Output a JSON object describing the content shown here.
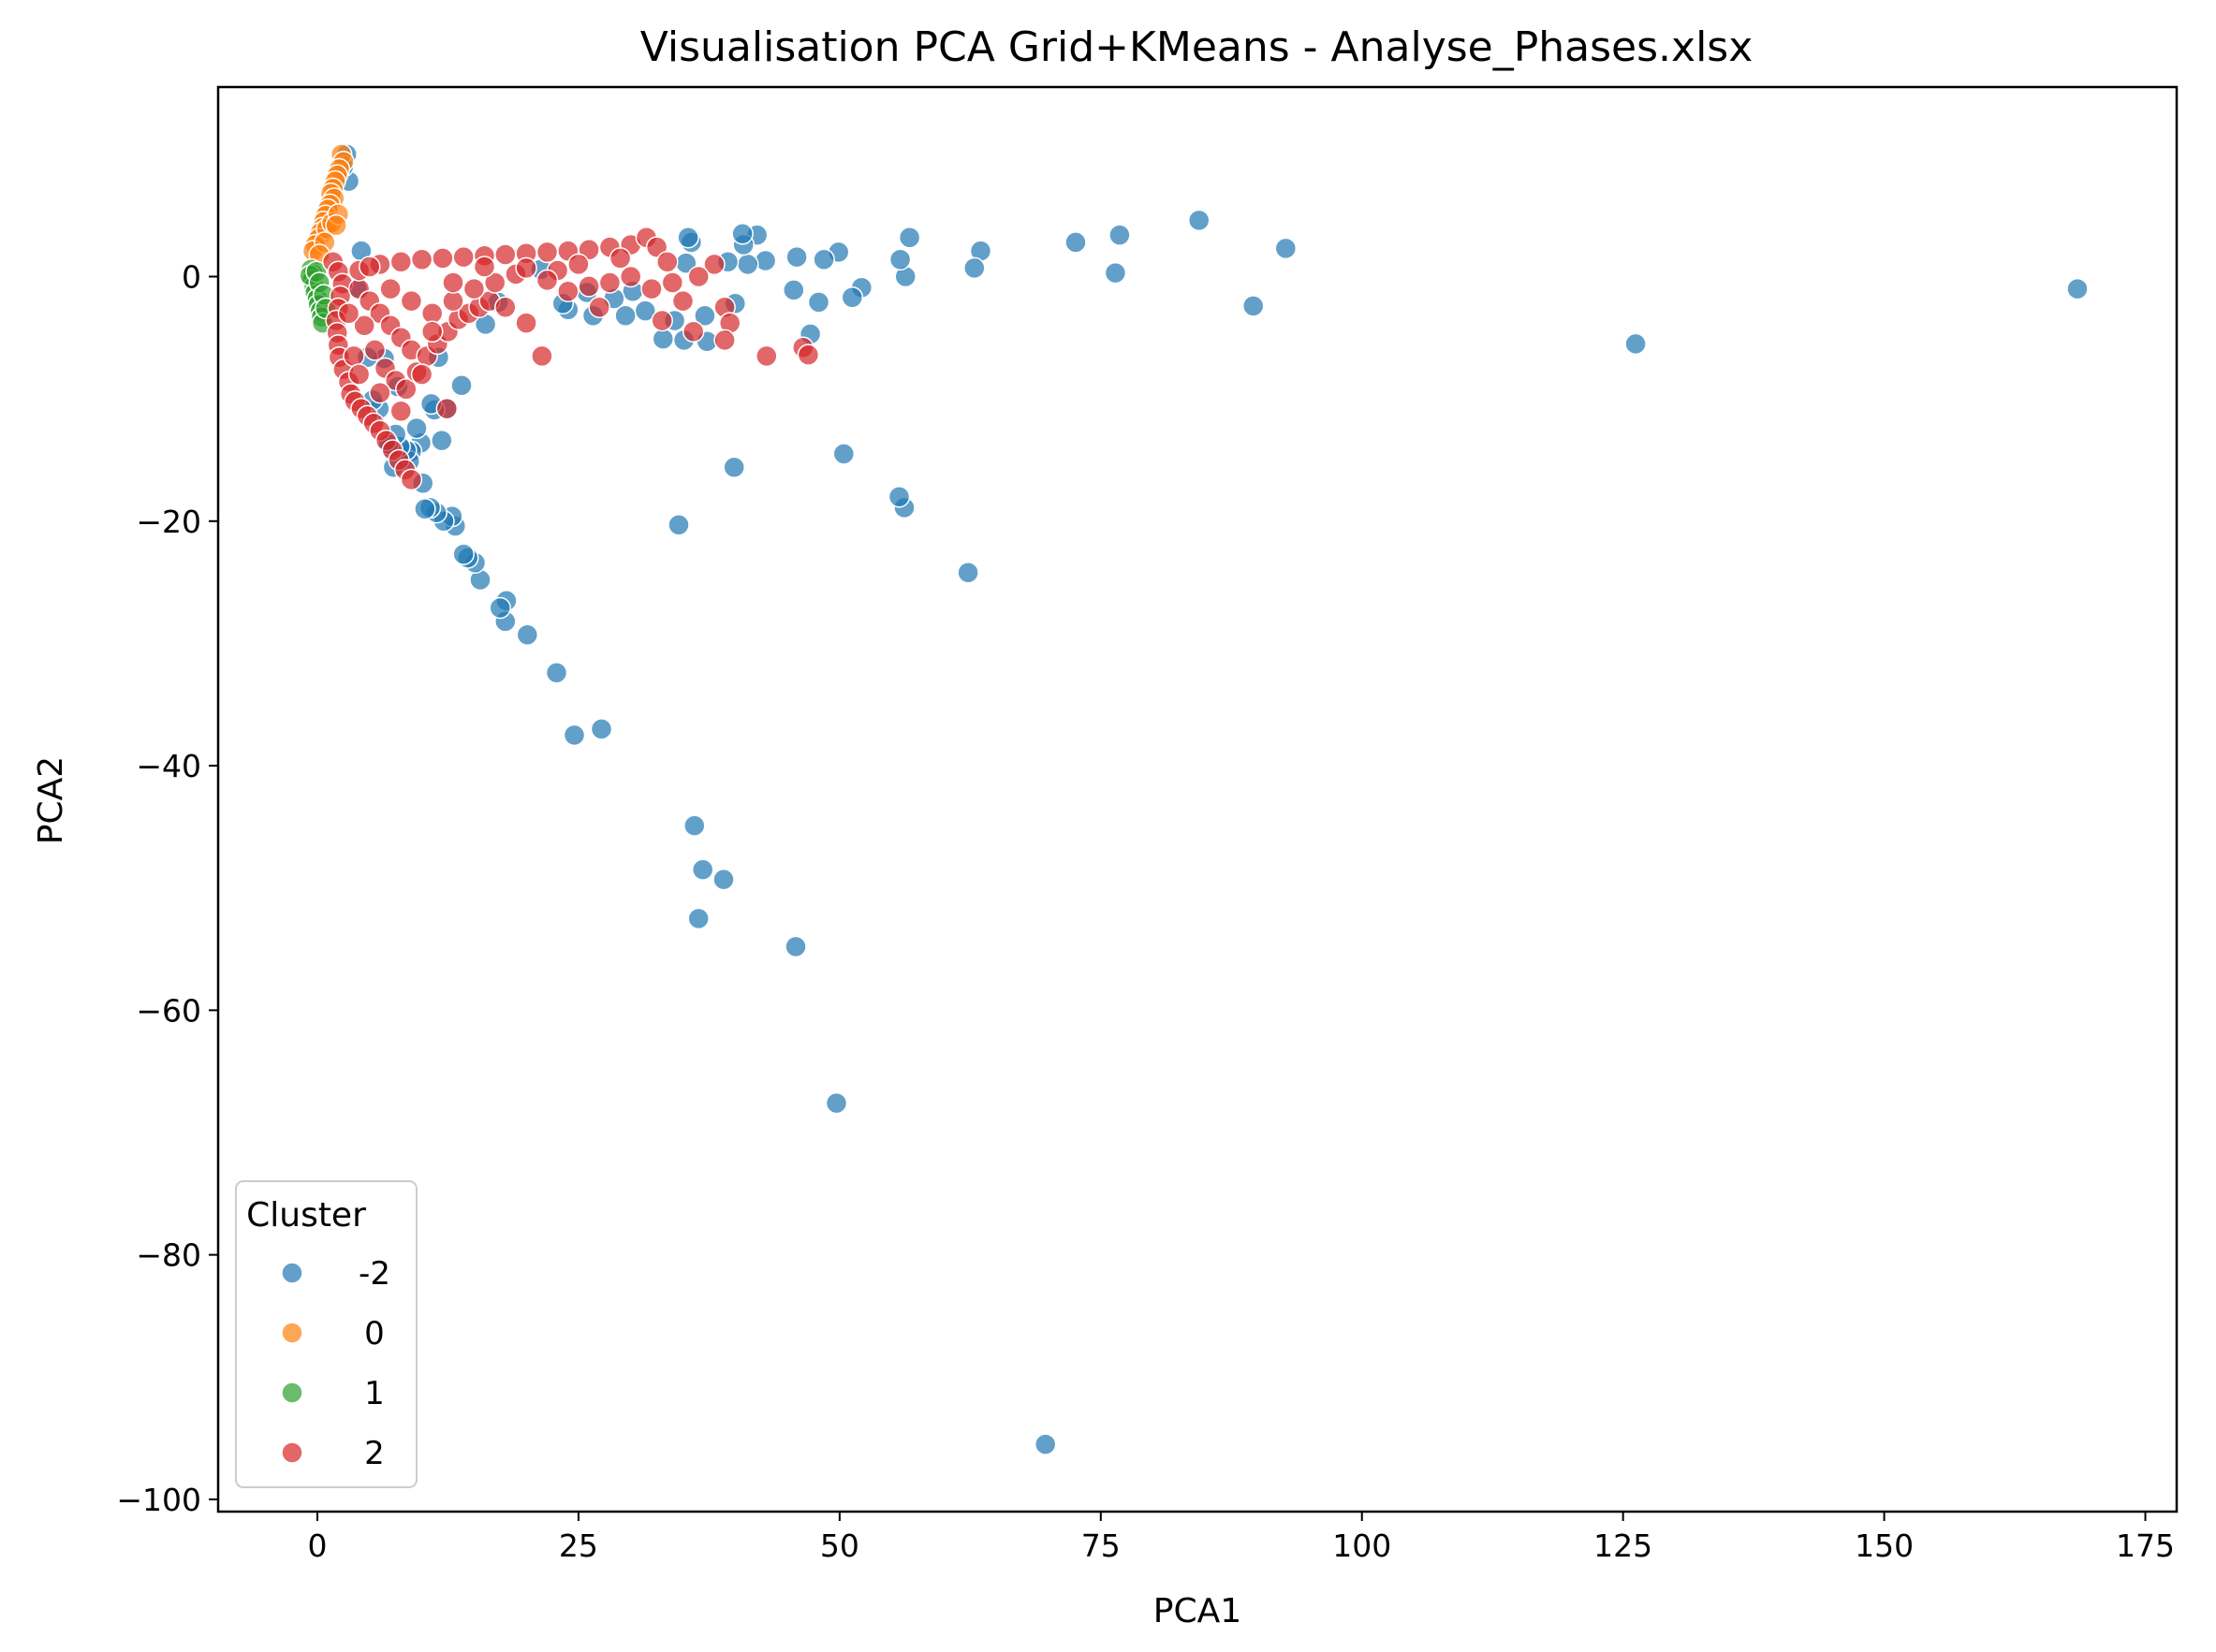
{
  "chart_data": {
    "type": "scatter",
    "title": "Visualisation PCA Grid+KMeans - Analyse_Phases.xlsx",
    "xlabel": "PCA1",
    "ylabel": "PCA2",
    "xlim": [
      -9.5,
      178
    ],
    "ylim": [
      -101,
      15.5
    ],
    "xticks": [
      0,
      25,
      50,
      75,
      100,
      125,
      150,
      175
    ],
    "xtick_labels": [
      "0",
      "25",
      "50",
      "75",
      "100",
      "125",
      "150",
      "175"
    ],
    "yticks": [
      0,
      -20,
      -40,
      -60,
      -80,
      -100
    ],
    "ytick_labels": [
      "0",
      "−20",
      "−40",
      "−60",
      "−80",
      "−100"
    ],
    "grid": false,
    "legend": {
      "title": "Cluster",
      "placement": "lower-left"
    },
    "series": [
      {
        "name": "-2",
        "color": "#1f77b4",
        "points": [
          [
            168.5,
            -1.0
          ],
          [
            126.2,
            -5.5
          ],
          [
            92.7,
            2.3
          ],
          [
            89.6,
            -2.4
          ],
          [
            84.4,
            4.6
          ],
          [
            76.8,
            3.4
          ],
          [
            76.4,
            0.3
          ],
          [
            72.6,
            2.8
          ],
          [
            69.7,
            -95.5
          ],
          [
            63.5,
            2.1
          ],
          [
            62.9,
            0.7
          ],
          [
            62.3,
            -24.2
          ],
          [
            56.7,
            3.2
          ],
          [
            56.3,
            0.0
          ],
          [
            56.2,
            -18.9
          ],
          [
            55.8,
            1.4
          ],
          [
            55.7,
            -18.0
          ],
          [
            52.1,
            -0.9
          ],
          [
            51.2,
            -1.7
          ],
          [
            50.4,
            -14.5
          ],
          [
            49.9,
            2.0
          ],
          [
            49.7,
            -67.6
          ],
          [
            48.5,
            1.4
          ],
          [
            48.0,
            -2.1
          ],
          [
            47.2,
            -4.7
          ],
          [
            45.9,
            1.6
          ],
          [
            45.8,
            -54.8
          ],
          [
            45.6,
            -1.1
          ],
          [
            42.9,
            1.3
          ],
          [
            42.1,
            3.4
          ],
          [
            41.2,
            1.0
          ],
          [
            40.8,
            2.6
          ],
          [
            40.7,
            3.5
          ],
          [
            40.0,
            -2.2
          ],
          [
            39.9,
            -15.6
          ],
          [
            39.3,
            1.2
          ],
          [
            38.9,
            -49.3
          ],
          [
            37.3,
            -5.3
          ],
          [
            37.1,
            -3.2
          ],
          [
            36.9,
            -48.5
          ],
          [
            36.5,
            -52.5
          ],
          [
            36.1,
            -44.9
          ],
          [
            35.8,
            2.8
          ],
          [
            35.5,
            3.2
          ],
          [
            35.3,
            1.1
          ],
          [
            35.1,
            -5.2
          ],
          [
            34.6,
            -20.3
          ],
          [
            34.2,
            -3.6
          ],
          [
            33.1,
            -5.1
          ],
          [
            31.4,
            -2.8
          ],
          [
            30.2,
            -1.2
          ],
          [
            29.5,
            -3.2
          ],
          [
            28.4,
            -1.8
          ],
          [
            27.2,
            -37.0
          ],
          [
            26.4,
            -3.2
          ],
          [
            25.8,
            -1.3
          ],
          [
            24.6,
            -37.5
          ],
          [
            24.0,
            -2.7
          ],
          [
            23.5,
            -2.2
          ],
          [
            22.9,
            -32.4
          ],
          [
            21.4,
            0.6
          ],
          [
            20.1,
            -29.3
          ],
          [
            18.1,
            -26.5
          ],
          [
            18.0,
            -28.2
          ],
          [
            17.5,
            -27.1
          ],
          [
            17.3,
            -2.1
          ],
          [
            16.1,
            -3.9
          ],
          [
            15.6,
            -24.8
          ],
          [
            15.1,
            -23.4
          ],
          [
            14.4,
            -23.0
          ],
          [
            14.0,
            -22.7
          ],
          [
            13.8,
            -8.9
          ],
          [
            13.2,
            -20.4
          ],
          [
            12.9,
            -19.6
          ],
          [
            12.5,
            -10.8
          ],
          [
            12.1,
            -20.0
          ],
          [
            11.9,
            -13.4
          ],
          [
            11.6,
            -6.6
          ],
          [
            11.4,
            -19.3
          ],
          [
            11.2,
            -10.9
          ],
          [
            10.9,
            -10.4
          ],
          [
            10.8,
            -18.9
          ],
          [
            10.3,
            -19.0
          ],
          [
            10.1,
            -16.9
          ],
          [
            9.9,
            -13.6
          ],
          [
            9.5,
            -12.4
          ],
          [
            9.0,
            -14.3
          ],
          [
            8.8,
            -15.1
          ],
          [
            8.5,
            -14.2
          ],
          [
            7.9,
            -13.9
          ],
          [
            7.7,
            -9.0
          ],
          [
            7.5,
            -12.9
          ],
          [
            7.3,
            -15.6
          ],
          [
            7.0,
            -14.0
          ],
          [
            6.8,
            -13.7
          ],
          [
            6.4,
            -6.7
          ],
          [
            5.9,
            -10.8
          ],
          [
            5.3,
            -10.1
          ],
          [
            4.8,
            -6.6
          ],
          [
            4.2,
            2.1
          ],
          [
            3.8,
            -1.0
          ],
          [
            3.0,
            7.8
          ],
          [
            2.8,
            10.0
          ],
          [
            2.5,
            9.0
          ]
        ]
      },
      {
        "name": "0",
        "color": "#ff7f0e",
        "points": [
          [
            2.3,
            10.0
          ],
          [
            2.5,
            9.4
          ],
          [
            2.1,
            8.8
          ],
          [
            1.9,
            8.3
          ],
          [
            1.7,
            7.8
          ],
          [
            1.5,
            7.2
          ],
          [
            1.3,
            6.8
          ],
          [
            1.6,
            6.4
          ],
          [
            1.2,
            5.9
          ],
          [
            1.0,
            5.5
          ],
          [
            0.8,
            5.0
          ],
          [
            0.6,
            4.5
          ],
          [
            0.5,
            4.0
          ],
          [
            0.3,
            3.6
          ],
          [
            0.1,
            3.1
          ],
          [
            -0.2,
            2.6
          ],
          [
            -0.4,
            2.1
          ],
          [
            0.9,
            3.9
          ],
          [
            1.4,
            4.4
          ],
          [
            2.0,
            5.1
          ],
          [
            1.8,
            4.2
          ],
          [
            0.7,
            2.8
          ],
          [
            0.2,
            1.8
          ]
        ]
      },
      {
        "name": "1",
        "color": "#2ca02c",
        "points": [
          [
            -0.6,
            0.6
          ],
          [
            -0.4,
            0.2
          ],
          [
            -0.5,
            -0.3
          ],
          [
            -0.3,
            -0.8
          ],
          [
            -0.2,
            -1.3
          ],
          [
            0.0,
            -1.8
          ],
          [
            0.1,
            -2.3
          ],
          [
            0.3,
            -2.8
          ],
          [
            0.4,
            -3.3
          ],
          [
            0.5,
            -3.8
          ],
          [
            -0.7,
            0.1
          ],
          [
            -0.1,
            0.4
          ],
          [
            0.2,
            -0.5
          ],
          [
            0.6,
            -1.5
          ],
          [
            0.8,
            -2.6
          ]
        ]
      },
      {
        "name": "2",
        "color": "#d62728",
        "points": [
          [
            1.5,
            1.2
          ],
          [
            2.0,
            0.4
          ],
          [
            2.4,
            -0.6
          ],
          [
            2.2,
            -1.6
          ],
          [
            2.0,
            -2.6
          ],
          [
            1.8,
            -3.6
          ],
          [
            1.9,
            -4.6
          ],
          [
            2.0,
            -5.6
          ],
          [
            2.1,
            -6.6
          ],
          [
            2.5,
            -7.6
          ],
          [
            3.0,
            -8.6
          ],
          [
            3.2,
            -9.6
          ],
          [
            3.6,
            -10.2
          ],
          [
            4.2,
            -10.8
          ],
          [
            4.8,
            -11.4
          ],
          [
            5.4,
            -12.0
          ],
          [
            6.0,
            -12.6
          ],
          [
            6.6,
            -13.4
          ],
          [
            7.2,
            -14.2
          ],
          [
            7.8,
            -15.0
          ],
          [
            8.4,
            -15.8
          ],
          [
            9.0,
            -16.6
          ],
          [
            12.4,
            -10.8
          ],
          [
            4.0,
            -1.0
          ],
          [
            5.0,
            -2.0
          ],
          [
            6.0,
            -3.0
          ],
          [
            7.0,
            -4.0
          ],
          [
            8.0,
            -5.0
          ],
          [
            9.0,
            -6.0
          ],
          [
            4.5,
            -4.0
          ],
          [
            5.5,
            -6.0
          ],
          [
            6.5,
            -7.5
          ],
          [
            7.5,
            -8.5
          ],
          [
            8.5,
            -9.2
          ],
          [
            9.5,
            -7.8
          ],
          [
            10.5,
            -6.5
          ],
          [
            11.5,
            -5.5
          ],
          [
            12.5,
            -4.5
          ],
          [
            13.5,
            -3.5
          ],
          [
            14.5,
            -3.0
          ],
          [
            15.5,
            -2.5
          ],
          [
            16.5,
            -2.0
          ],
          [
            4.0,
            0.5
          ],
          [
            6.0,
            1.0
          ],
          [
            8.0,
            1.2
          ],
          [
            10.0,
            1.4
          ],
          [
            12.0,
            1.5
          ],
          [
            14.0,
            1.6
          ],
          [
            16.0,
            1.7
          ],
          [
            18.0,
            1.8
          ],
          [
            20.0,
            1.9
          ],
          [
            22.0,
            2.0
          ],
          [
            24.0,
            2.1
          ],
          [
            26.0,
            2.2
          ],
          [
            28.0,
            2.4
          ],
          [
            30.0,
            2.6
          ],
          [
            31.5,
            3.2
          ],
          [
            32.5,
            2.4
          ],
          [
            33.5,
            1.2
          ],
          [
            34.0,
            -0.5
          ],
          [
            35.0,
            -2.0
          ],
          [
            36.0,
            -4.5
          ],
          [
            38.0,
            1.0
          ],
          [
            39.0,
            -2.5
          ],
          [
            39.5,
            -3.8
          ],
          [
            39.0,
            -5.2
          ],
          [
            43.0,
            -6.5
          ],
          [
            46.5,
            -5.8
          ],
          [
            47.0,
            -6.4
          ],
          [
            21.5,
            -6.5
          ],
          [
            20.0,
            -3.8
          ],
          [
            18.0,
            -2.5
          ],
          [
            24.0,
            -1.2
          ],
          [
            26.0,
            -0.8
          ],
          [
            28.0,
            -0.5
          ],
          [
            30.0,
            0.0
          ],
          [
            32.0,
            -1.0
          ],
          [
            29.0,
            1.5
          ],
          [
            27.0,
            -2.5
          ],
          [
            23.0,
            0.5
          ],
          [
            25.0,
            1.0
          ],
          [
            19.0,
            0.2
          ],
          [
            17.0,
            -0.5
          ],
          [
            15.0,
            -1.0
          ],
          [
            13.0,
            -2.0
          ],
          [
            11.0,
            -3.0
          ],
          [
            9.0,
            -2.0
          ],
          [
            7.0,
            -1.0
          ],
          [
            5.0,
            0.8
          ],
          [
            10.0,
            -8.0
          ],
          [
            11.0,
            -4.5
          ],
          [
            13.0,
            -0.5
          ],
          [
            16.0,
            0.8
          ],
          [
            20.0,
            0.7
          ],
          [
            22.0,
            -0.3
          ],
          [
            36.5,
            0.0
          ],
          [
            33.0,
            -3.6
          ],
          [
            6.0,
            -9.5
          ],
          [
            8.0,
            -11.0
          ],
          [
            3.0,
            -3.0
          ],
          [
            3.5,
            -6.5
          ],
          [
            4.0,
            -8.0
          ]
        ]
      }
    ]
  }
}
